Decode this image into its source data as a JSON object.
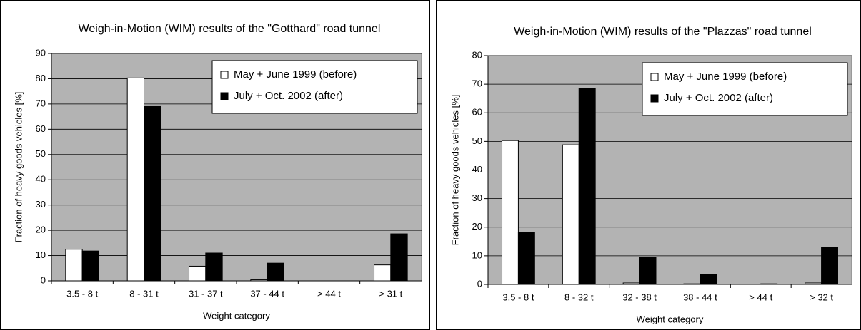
{
  "chart_data": [
    {
      "type": "bar",
      "title": "Weigh-in-Motion (WIM) results of the \"Gotthard\" road tunnel",
      "xlabel": "Weight category",
      "ylabel": "Fraction of heavy goods vehicles [%]",
      "categories": [
        "3.5 - 8 t",
        "8 - 31 t",
        "31 - 37 t",
        "37 - 44 t",
        "> 44 t",
        "> 31 t"
      ],
      "series": [
        {
          "name": "May + June 1999 (before)",
          "color": "#ffffff",
          "values": [
            12.5,
            80.3,
            5.8,
            0.4,
            0,
            6.3
          ]
        },
        {
          "name": "July + Oct. 2002  (after)",
          "color": "#000000",
          "values": [
            11.8,
            69,
            11,
            7,
            0,
            18.6
          ]
        }
      ],
      "ylim": [
        0,
        90
      ],
      "yticks": [
        0,
        10,
        20,
        30,
        40,
        50,
        60,
        70,
        80,
        90
      ],
      "grid": true,
      "legend": "upper right"
    },
    {
      "type": "bar",
      "title": "Weigh-in-Motion (WIM) results of the \"Plazzas\" road tunnel",
      "xlabel": "Weight category",
      "ylabel": "Fraction of heavy goods vehicles [%]",
      "categories": [
        "3.5 - 8 t",
        "8 - 32 t",
        "32 - 38 t",
        "38 - 44 t",
        "> 44 t",
        "> 32 t"
      ],
      "series": [
        {
          "name": "May + June 1999 (before)",
          "color": "#ffffff",
          "values": [
            50.3,
            48.8,
            0.5,
            0.2,
            0,
            0.5
          ]
        },
        {
          "name": "July + Oct. 2002  (after)",
          "color": "#000000",
          "values": [
            18.3,
            68.5,
            9.4,
            3.5,
            0.2,
            13
          ]
        }
      ],
      "ylim": [
        0,
        80
      ],
      "yticks": [
        0,
        10,
        20,
        30,
        40,
        50,
        60,
        70,
        80
      ],
      "grid": true,
      "legend": "upper right"
    }
  ]
}
